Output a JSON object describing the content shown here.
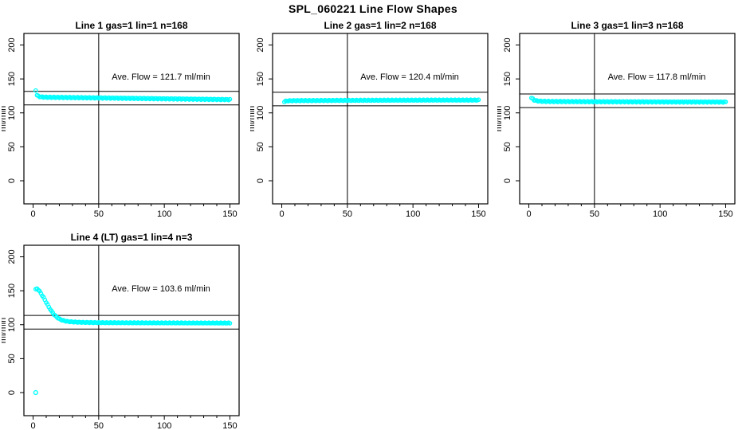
{
  "page_title": "SPL_060221  Line Flow Shapes",
  "axes": {
    "x_range": [
      -7,
      157
    ],
    "y_range": [
      -34,
      217
    ],
    "x_ticks": [
      0,
      50,
      100,
      150
    ],
    "x_minor_step": 10,
    "y_ticks": [
      0,
      50,
      100,
      150,
      200
    ],
    "y_label": "ml/min",
    "vline_x": 50
  },
  "marker_color": "#00ffff",
  "line_color": "#000000",
  "chart_data": [
    {
      "type": "scatter",
      "title": "Line 1 gas=1 lin=1 n=168",
      "annotation": "Ave. Flow =  121.7  ml/min",
      "ave_flow_ml_min": 121.7,
      "hlines": [
        131.7,
        111.7
      ],
      "x_end": 150,
      "x_step": 1,
      "noise": 0.7,
      "outliers": [],
      "keypoints": [
        [
          2,
          133.5
        ],
        [
          3,
          126
        ],
        [
          4,
          124.5
        ],
        [
          6,
          123.5
        ],
        [
          10,
          123
        ],
        [
          20,
          122.8
        ],
        [
          40,
          122.3
        ],
        [
          60,
          121.8
        ],
        [
          80,
          121.3
        ],
        [
          100,
          120.8
        ],
        [
          120,
          120.3
        ],
        [
          150,
          119.6
        ]
      ]
    },
    {
      "type": "scatter",
      "title": "Line 2 gas=1 lin=2 n=168",
      "annotation": "Ave. Flow =  120.4  ml/min",
      "ave_flow_ml_min": 120.4,
      "hlines": [
        130.4,
        110.4
      ],
      "x_end": 150,
      "x_step": 1,
      "noise": 0.6,
      "outliers": [],
      "keypoints": [
        [
          2,
          116.5
        ],
        [
          3,
          117.2
        ],
        [
          5,
          117.8
        ],
        [
          10,
          118
        ],
        [
          40,
          118.3
        ],
        [
          80,
          118.6
        ],
        [
          120,
          118.8
        ],
        [
          150,
          118.8
        ]
      ]
    },
    {
      "type": "scatter",
      "title": "Line 3 gas=1 lin=3 n=168",
      "annotation": "Ave. Flow =  117.8  ml/min",
      "ave_flow_ml_min": 117.8,
      "hlines": [
        127.8,
        107.8
      ],
      "x_end": 150,
      "x_step": 1,
      "noise": 0.7,
      "outliers": [],
      "keypoints": [
        [
          2,
          122
        ],
        [
          3,
          120.5
        ],
        [
          4,
          119
        ],
        [
          6,
          117.8
        ],
        [
          10,
          117
        ],
        [
          20,
          116.7
        ],
        [
          60,
          116.4
        ],
        [
          100,
          116.2
        ],
        [
          150,
          116
        ]
      ]
    },
    {
      "type": "scatter",
      "title": "Line 4 (LT) gas=1 lin=4 n=3",
      "annotation": "Ave. Flow =  103.6  ml/min",
      "ave_flow_ml_min": 103.6,
      "hlines": [
        113.6,
        93.6
      ],
      "x_end": 150,
      "x_step": 1,
      "noise": 0.5,
      "outliers": [
        [
          2,
          0
        ]
      ],
      "keypoints": [
        [
          2,
          152
        ],
        [
          3,
          153
        ],
        [
          4,
          151.5
        ],
        [
          5,
          149
        ],
        [
          6,
          146
        ],
        [
          7,
          143
        ],
        [
          8,
          140
        ],
        [
          9,
          136.5
        ],
        [
          10,
          133
        ],
        [
          11,
          129.5
        ],
        [
          12,
          126
        ],
        [
          13,
          123
        ],
        [
          14,
          120
        ],
        [
          15,
          117.5
        ],
        [
          16,
          115
        ],
        [
          17,
          113
        ],
        [
          18,
          111.3
        ],
        [
          19,
          109.8
        ],
        [
          20,
          108.5
        ],
        [
          22,
          106.8
        ],
        [
          24,
          105.6
        ],
        [
          26,
          104.9
        ],
        [
          28,
          104.4
        ],
        [
          30,
          104.1
        ],
        [
          35,
          103.6
        ],
        [
          40,
          103.3
        ],
        [
          50,
          103
        ],
        [
          70,
          102.8
        ],
        [
          100,
          102.6
        ],
        [
          150,
          102.4
        ]
      ]
    }
  ]
}
